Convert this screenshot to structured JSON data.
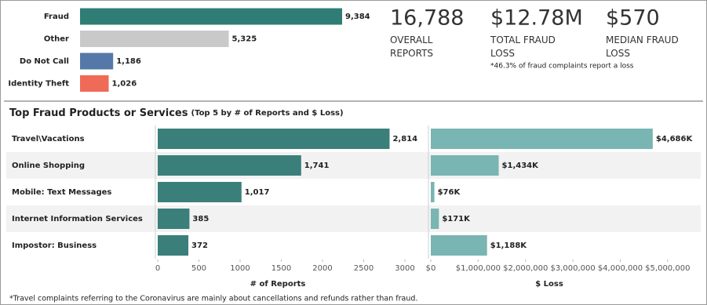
{
  "chart_data": [
    {
      "type": "hbar",
      "categories": [
        "Fraud",
        "Other",
        "Do Not Call",
        "Identity Theft"
      ],
      "values": [
        9384,
        5325,
        1186,
        1026
      ],
      "value_labels": [
        "9,384",
        "5,325",
        "1,186",
        "1,026"
      ],
      "colors": [
        "#2f7d74",
        "#c9c9c9",
        "#5479a9",
        "#ef6a57"
      ]
    },
    {
      "type": "hbar",
      "title": "Top Fraud Products or Services",
      "subtitle": "(Top 5 by # of Reports and $ Loss)",
      "categories": [
        "Travel\\Vacations",
        "Online Shopping",
        "Mobile: Text Messages",
        "Internet Information Services",
        "Impostor: Business"
      ],
      "values": [
        2814,
        1741,
        1017,
        385,
        372
      ],
      "value_labels": [
        "2,814",
        "1,741",
        "1,017",
        "385",
        "372"
      ],
      "color": "#3a7f7a",
      "xlabel": "# of Reports",
      "xlim": [
        0,
        3200
      ],
      "xticks": [
        0,
        500,
        1000,
        1500,
        2000,
        2500,
        3000
      ]
    },
    {
      "type": "hbar",
      "values": [
        4686000,
        1434000,
        76000,
        171000,
        1188000
      ],
      "value_labels": [
        "$4,686K",
        "$1,434K",
        "$76K",
        "$171K",
        "$1,188K"
      ],
      "color": "#79b5b2",
      "xlabel": "$ Loss",
      "xlim": [
        0,
        5500000
      ],
      "xticks": [
        {
          "value": 0,
          "label": "$0"
        },
        {
          "value": 1000000,
          "label": "$1,000,000"
        },
        {
          "value": 2000000,
          "label": "$2,000,000"
        },
        {
          "value": 3000000,
          "label": "$3,000,000"
        },
        {
          "value": 4000000,
          "label": "$4,000,000"
        },
        {
          "value": 5000000,
          "label": "$5,000,000"
        }
      ]
    }
  ],
  "kpis": [
    {
      "value": "16,788",
      "label": "OVERALL REPORTS"
    },
    {
      "value": "$12.78M",
      "label": "TOTAL FRAUD LOSS"
    },
    {
      "value": "$570",
      "label": "MEDIAN FRAUD LOSS"
    }
  ],
  "kpi_note": "*46.3% of fraud complaints report a loss",
  "footnote": "*Travel complaints referring to the Coronavirus are mainly about cancellations and refunds rather than fraud."
}
